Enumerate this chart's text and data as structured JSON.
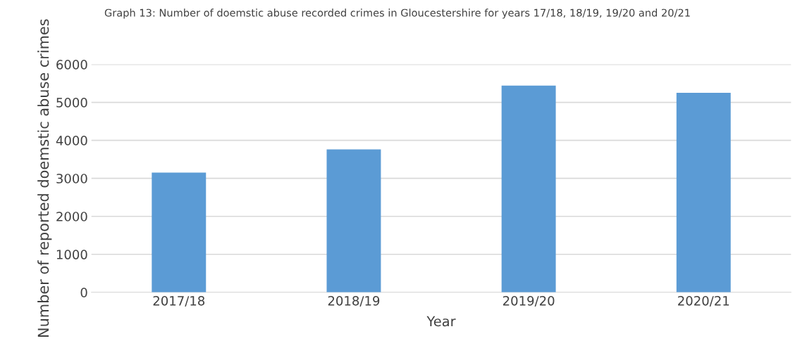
{
  "chart_data": {
    "type": "bar",
    "title": "Graph 13: Number of doemstic abuse recorded crimes in Gloucestershire for years 17/18, 18/19, 19/20 and 20/21",
    "xlabel": "Year",
    "ylabel": "Number of reported doemstic abuse crimes",
    "categories": [
      "2017/18",
      "2018/19",
      "2019/20",
      "2020/21"
    ],
    "values": [
      3150,
      3760,
      5440,
      5250
    ],
    "color": "#5b9bd5",
    "ylim": [
      0,
      6000
    ],
    "yticks": [
      0,
      1000,
      2000,
      3000,
      4000,
      5000,
      6000
    ],
    "grid": "y"
  }
}
